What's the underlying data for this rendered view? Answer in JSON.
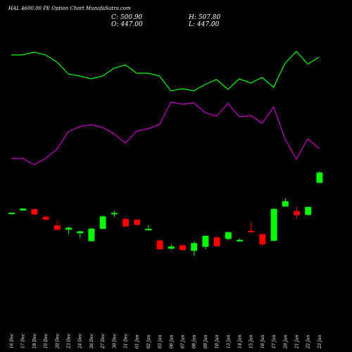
{
  "header": {
    "title": "HAL 4600.00 PE Option Chart MunafaSutra.com",
    "close": "C: 500.90",
    "high": "H: 507.80",
    "open": "O: 447.00",
    "low": "L: 447.00"
  },
  "colors": {
    "background": "#000000",
    "bull": "#00ff00",
    "bear": "#ff0000",
    "line_upper": "#00ff00",
    "line_lower": "#cc00cc",
    "text": "#ffffff"
  },
  "chart_data": {
    "type": "candlestick",
    "categories": [
      "16 Dec",
      "17 Dec",
      "18 Dec",
      "19 Dec",
      "20 Dec",
      "23 Dec",
      "24 Dec",
      "26 Dec",
      "27 Dec",
      "30 Dec",
      "31 Dec",
      "01 Jan",
      "02 Jan",
      "03 Jan",
      "06 Jan",
      "07 Jan",
      "08 Jan",
      "09 Jan",
      "10 Jan",
      "13 Jan",
      "14 Jan",
      "15 Jan",
      "16 Jan",
      "17 Jan",
      "20 Jan",
      "21 Jan",
      "22 Jan",
      "23 Jan"
    ],
    "candles": [
      {
        "o": 287,
        "h": 290,
        "l": 280,
        "c": 289,
        "dir": "up"
      },
      {
        "o": 301,
        "h": 312,
        "l": 299,
        "c": 311,
        "dir": "up"
      },
      {
        "o": 308,
        "h": 312,
        "l": 278,
        "c": 280,
        "dir": "down"
      },
      {
        "o": 267,
        "h": 275,
        "l": 249,
        "c": 252,
        "dir": "down"
      },
      {
        "o": 222,
        "h": 241,
        "l": 197,
        "c": 199,
        "dir": "down"
      },
      {
        "o": 210,
        "h": 216,
        "l": 176,
        "c": 200,
        "dir": "up"
      },
      {
        "o": 181,
        "h": 194,
        "l": 155,
        "c": 191,
        "dir": "up"
      },
      {
        "o": 205,
        "h": 210,
        "l": 137,
        "c": 139,
        "dir": "up"
      },
      {
        "o": 204,
        "h": 274,
        "l": 202,
        "c": 270,
        "dir": "up"
      },
      {
        "o": 288,
        "h": 300,
        "l": 266,
        "c": 281,
        "dir": "up"
      },
      {
        "o": 256,
        "h": 263,
        "l": 213,
        "c": 217,
        "dir": "down"
      },
      {
        "o": 253,
        "h": 255,
        "l": 223,
        "c": 225,
        "dir": "down"
      },
      {
        "o": 202,
        "h": 224,
        "l": 198,
        "c": 204,
        "dir": "up"
      },
      {
        "o": 143,
        "h": 148,
        "l": 92,
        "c": 96,
        "dir": "down"
      },
      {
        "o": 100,
        "h": 122,
        "l": 93,
        "c": 111,
        "dir": "up"
      },
      {
        "o": 117,
        "h": 122,
        "l": 89,
        "c": 93,
        "dir": "down"
      },
      {
        "o": 88,
        "h": 138,
        "l": 63,
        "c": 129,
        "dir": "up"
      },
      {
        "o": 109,
        "h": 170,
        "l": 96,
        "c": 167,
        "dir": "up"
      },
      {
        "o": 159,
        "h": 169,
        "l": 112,
        "c": 112,
        "dir": "down"
      },
      {
        "o": 151,
        "h": 191,
        "l": 145,
        "c": 186,
        "dir": "up"
      },
      {
        "o": 138,
        "h": 153,
        "l": 135,
        "c": 146,
        "dir": "up"
      },
      {
        "o": 193,
        "h": 237,
        "l": 190,
        "c": 189,
        "dir": "down"
      },
      {
        "o": 176,
        "h": 179,
        "l": 111,
        "c": 122,
        "dir": "down"
      },
      {
        "o": 141,
        "h": 314,
        "l": 140,
        "c": 309,
        "dir": "up"
      },
      {
        "o": 350,
        "h": 366,
        "l": 324,
        "c": 322,
        "dir": "up"
      },
      {
        "o": 298,
        "h": 319,
        "l": 262,
        "c": 276,
        "dir": "down"
      },
      {
        "o": 278,
        "h": 321,
        "l": 274,
        "c": 320,
        "dir": "up"
      },
      {
        "o": 447.0,
        "h": 507.8,
        "l": 447.0,
        "c": 500.9,
        "dir": "up"
      }
    ],
    "line_upper": [
      78,
      78,
      74,
      78,
      88,
      105,
      108,
      112,
      108,
      97,
      92,
      104,
      104,
      108,
      129,
      126,
      129,
      120,
      113,
      127,
      112,
      118,
      110,
      124,
      90,
      73,
      91,
      81
    ],
    "line_lower": [
      225,
      225,
      234,
      225,
      212,
      187,
      180,
      177,
      181,
      190,
      203,
      186,
      183,
      177,
      145,
      148,
      146,
      160,
      165,
      147,
      166,
      164,
      175,
      152,
      197,
      226,
      197,
      211
    ],
    "ylim": [
      0,
      520
    ]
  }
}
